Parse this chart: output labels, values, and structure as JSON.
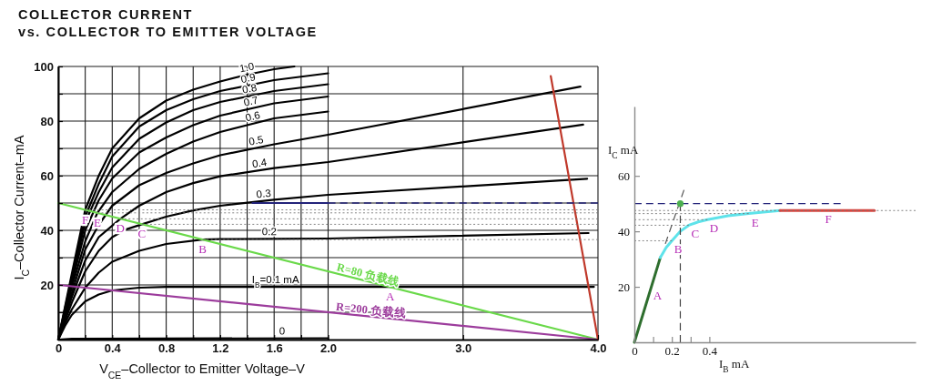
{
  "chart_data": [
    {
      "type": "line",
      "title": "COLLECTOR CURRENT",
      "subtitle": "vs. COLLECTOR TO EMITTER VOLTAGE",
      "xlabel": "V$_{CE}$–Collector to Emitter Voltage–V",
      "ylabel": "I$_{C}$–Collector Current–mA",
      "xlim": [
        0,
        4.0
      ],
      "ylim": [
        0,
        100
      ],
      "xticks": [
        0,
        {
          "value": 0.2,
          "label": null
        },
        0.4,
        {
          "value": 0.6,
          "label": null
        },
        0.8,
        {
          "value": 1.0,
          "label": null
        },
        1.2,
        {
          "value": 1.4,
          "label": null
        },
        1.6,
        {
          "value": 1.8,
          "label": null
        },
        {
          "value": 2.0,
          "label": "2.0"
        },
        {
          "value": 3.0,
          "label": "3.0"
        },
        {
          "value": 4.0,
          "label": "4.0"
        }
      ],
      "yticks": [
        {
          "value": 10,
          "label": null
        },
        20,
        {
          "value": 30,
          "label": null
        },
        40,
        {
          "value": 50,
          "label": null
        },
        60,
        {
          "value": 70,
          "label": null
        },
        80,
        {
          "value": 90,
          "label": null
        },
        100
      ],
      "grid": true,
      "line_style": "solid",
      "series": [
        {
          "name": "0",
          "color": "#000000",
          "x": [
            0,
            0.1,
            2.0
          ],
          "values": [
            0,
            0.3,
            0.5
          ]
        },
        {
          "name": "I$_{B}$=0.1 mA",
          "color": "#000000",
          "x": [
            0,
            0.05,
            0.1,
            0.2,
            0.3,
            0.4,
            0.6,
            0.8,
            1.0,
            2.0,
            3.97
          ],
          "values": [
            0,
            5,
            9,
            14,
            16.5,
            18,
            19,
            19.3,
            19.3,
            19.3,
            19.3
          ]
        },
        {
          "name": "0.2",
          "color": "#000000",
          "x": [
            0,
            0.05,
            0.1,
            0.2,
            0.3,
            0.4,
            0.6,
            0.8,
            1.07,
            1.2,
            1.6,
            2.0,
            3.93
          ],
          "values": [
            0,
            6,
            11,
            19,
            24.5,
            28.5,
            32.5,
            35,
            36.6,
            36.8,
            36.9,
            37,
            39
          ]
        },
        {
          "name": "0.3",
          "color": "#000000",
          "x": [
            0,
            0.05,
            0.1,
            0.2,
            0.3,
            0.4,
            0.5,
            0.62,
            0.8,
            1.0,
            1.2,
            1.6,
            2.0,
            3.92
          ],
          "values": [
            0,
            7,
            13.5,
            25,
            32.5,
            37.5,
            40.3,
            42.2,
            45,
            47.3,
            49,
            51.2,
            53,
            58.9
          ]
        },
        {
          "name": "0.4",
          "color": "#000000",
          "x": [
            0,
            0.05,
            0.1,
            0.2,
            0.3,
            0.46,
            0.6,
            0.8,
            1.0,
            1.2,
            1.6,
            2.0,
            3.89
          ],
          "values": [
            0,
            8,
            15.5,
            29,
            37.5,
            44.2,
            49,
            54,
            57.3,
            59.8,
            62.8,
            65,
            78.7
          ]
        },
        {
          "name": "0.5",
          "color": "#000000",
          "x": [
            0,
            0.05,
            0.1,
            0.2,
            0.3,
            0.4,
            0.6,
            0.8,
            1.0,
            1.2,
            1.6,
            2.0,
            3.87
          ],
          "values": [
            0,
            9,
            17,
            33,
            42,
            49,
            56.5,
            61,
            64.5,
            67.5,
            71.5,
            75,
            92.6
          ]
        },
        {
          "name": "0.6",
          "color": "#000000",
          "x": [
            0,
            0.05,
            0.1,
            0.2,
            0.29,
            0.4,
            0.6,
            0.8,
            1.0,
            1.2,
            1.6,
            2.0
          ],
          "values": [
            0,
            10,
            19,
            36,
            46.4,
            54,
            62.5,
            68,
            72.5,
            76,
            81,
            83.5
          ]
        },
        {
          "name": "0.7",
          "color": "#000000",
          "x": [
            0,
            0.05,
            0.1,
            0.2,
            0.3,
            0.4,
            0.6,
            0.8,
            1.0,
            1.2,
            1.6,
            2.0
          ],
          "values": [
            0,
            10.5,
            20.5,
            40,
            51,
            59,
            68.5,
            74,
            78.5,
            82,
            86.5,
            89
          ]
        },
        {
          "name": "0.8",
          "color": "#000000",
          "x": [
            0,
            0.05,
            0.1,
            0.2,
            0.3,
            0.4,
            0.6,
            0.8,
            1.0,
            1.2,
            1.6,
            2.0
          ],
          "values": [
            0,
            11,
            21.5,
            43,
            54,
            63,
            73.5,
            79.5,
            84,
            87,
            91,
            93.5
          ]
        },
        {
          "name": "0.9",
          "color": "#000000",
          "x": [
            0,
            0.05,
            0.1,
            0.2,
            0.3,
            0.4,
            0.6,
            0.8,
            1.0,
            1.2,
            1.6,
            2.0
          ],
          "values": [
            0,
            11.5,
            22.5,
            45,
            57,
            67,
            78,
            84,
            88,
            91,
            95,
            97.5
          ]
        },
        {
          "name": "1.0",
          "color": "#000000",
          "x": [
            0,
            0.05,
            0.1,
            0.2,
            0.3,
            0.4,
            0.6,
            0.8,
            1.0,
            1.2,
            1.4,
            1.6,
            1.75
          ],
          "values": [
            0,
            12,
            24,
            47.5,
            60,
            70,
            81,
            87.5,
            91.5,
            94.5,
            97,
            99,
            100
          ]
        },
        {
          "color": "#777777",
          "line_style": "dotted",
          "x": [
            0.2,
            4.0
          ],
          "values": [
            47.5,
            47.5
          ]
        },
        {
          "color": "#777777",
          "line_style": "dotted",
          "x": [
            0.29,
            4.0
          ],
          "values": [
            46.4,
            46.4
          ]
        },
        {
          "color": "#777777",
          "line_style": "dotted",
          "x": [
            0.46,
            4.0
          ],
          "values": [
            44.2,
            44.2
          ]
        },
        {
          "color": "#777777",
          "line_style": "dotted",
          "x": [
            0.62,
            4.0
          ],
          "values": [
            42.2,
            42.2
          ]
        },
        {
          "color": "#777777",
          "line_style": "dotted",
          "x": [
            1.07,
            4.0
          ],
          "values": [
            36.6,
            36.6
          ]
        },
        {
          "color": "#23237a",
          "x": [
            1.44,
            2.0
          ],
          "values": [
            50,
            50
          ]
        },
        {
          "color": "#23237a",
          "line_style": "dashed",
          "x": [
            2.0,
            4.0
          ],
          "values": [
            50,
            50
          ]
        },
        {
          "name": "R=80 负载线",
          "color": "#6ad94a",
          "x": [
            0,
            4.0
          ],
          "values": [
            50,
            0
          ]
        },
        {
          "name": "R=200 负载线",
          "color": "#9c3c9c",
          "x": [
            0,
            4.0
          ],
          "values": [
            20,
            0
          ]
        },
        {
          "color": "#c0392b",
          "x": [
            3.65,
            4.0
          ],
          "values": [
            96.5,
            0
          ]
        }
      ],
      "annotations": [
        {
          "text": "F",
          "x": 0.2,
          "y": 47.5
        },
        {
          "text": "E",
          "x": 0.29,
          "y": 46.4
        },
        {
          "text": "D",
          "x": 0.46,
          "y": 44.2
        },
        {
          "text": "C",
          "x": 0.62,
          "y": 42.2
        },
        {
          "text": "B",
          "x": 1.07,
          "y": 36.6
        },
        {
          "text": "A",
          "x": 2.46,
          "y": 19.3
        }
      ]
    },
    {
      "type": "line",
      "xlabel": "I$_{B}$  mA",
      "ylabel": "I$_{C}$ mA",
      "xlim": [
        0,
        1.5
      ],
      "ylim": [
        0,
        85
      ],
      "xticks": [
        0,
        {
          "value": 0.1,
          "label": null
        },
        0.2,
        {
          "value": 0.3,
          "label": null
        },
        0.4
      ],
      "yticks": [
        20,
        40,
        60
      ],
      "line_style": "solid",
      "series": [
        {
          "color": "#777777",
          "line_style": "dotted",
          "x": [
            0,
            1.5
          ],
          "values": [
            47.5,
            47.5
          ]
        },
        {
          "color": "#777777",
          "line_style": "dotted",
          "x": [
            0,
            0.61
          ],
          "values": [
            46.4,
            46.4
          ]
        },
        {
          "color": "#777777",
          "line_style": "dotted",
          "x": [
            0,
            0.39
          ],
          "values": [
            44.2,
            44.2
          ]
        },
        {
          "color": "#777777",
          "line_style": "dotted",
          "x": [
            0,
            0.29
          ],
          "values": [
            42.2,
            42.2
          ]
        },
        {
          "color": "#777777",
          "line_style": "dotted",
          "x": [
            0,
            0.2
          ],
          "values": [
            36.6,
            36.6
          ]
        },
        {
          "color": "#23237a",
          "line_style": "dashed",
          "x": [
            0,
            1.1
          ],
          "values": [
            50,
            50
          ]
        },
        {
          "color": "#555555",
          "line_style": "dashed",
          "x": [
            0.165,
            0.265
          ],
          "values": [
            35.5,
            55
          ]
        },
        {
          "color": "#444444",
          "line_style": "dashed",
          "x": [
            0.245,
            0.245
          ],
          "values": [
            0,
            50
          ]
        },
        {
          "color": "#2e6e2e",
          "x": [
            0,
            0.138
          ],
          "values": [
            0,
            30.5
          ]
        },
        {
          "color": "#5ee3ea",
          "x": [
            0.138,
            0.17,
            0.2,
            0.245,
            0.29,
            0.34,
            0.39,
            0.5,
            0.61,
            0.7,
            0.777
          ],
          "values": [
            30.5,
            34.2,
            36.6,
            40.0,
            42.2,
            43.4,
            44.2,
            45.6,
            46.4,
            47.0,
            47.5
          ]
        },
        {
          "color": "#d9453f",
          "x": [
            0.777,
            1.28
          ],
          "values": [
            47.5,
            47.5
          ]
        },
        {
          "type": "scatter",
          "color": "#4caf50",
          "x": [
            0.245
          ],
          "values": [
            50
          ]
        }
      ],
      "annotations": [
        {
          "text": "A",
          "x": 0.09,
          "y": 20
        },
        {
          "text": "B",
          "x": 0.2,
          "y": 36.6
        },
        {
          "text": "C",
          "x": 0.29,
          "y": 42.2
        },
        {
          "text": "D",
          "x": 0.39,
          "y": 44.2
        },
        {
          "text": "E",
          "x": 0.61,
          "y": 46.4
        },
        {
          "text": "F",
          "x": 1.0,
          "y": 47.5
        }
      ]
    }
  ]
}
